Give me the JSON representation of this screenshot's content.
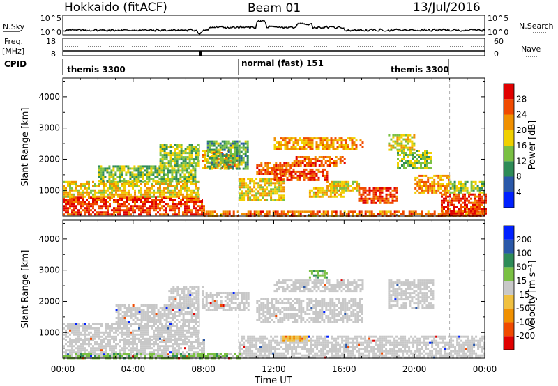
{
  "header": {
    "site": "Hokkaido (fitACF)",
    "beam": "Beam 01",
    "date": "13/Jul/2016"
  },
  "noise_panel": {
    "left_label": "N.Sky",
    "right_label": "N.Search",
    "left_ticks": [
      "10^5",
      "10^0"
    ],
    "right_ticks": [
      "10^5",
      "10^0"
    ]
  },
  "freq_panel": {
    "left_label_1": "Freq.",
    "left_label_2": "[MHz]",
    "right_label": "Nave",
    "left_ticks": [
      "18",
      "8"
    ],
    "right_ticks": [
      "60",
      "0"
    ]
  },
  "cpid_panel": {
    "label": "CPID",
    "segments": [
      {
        "text": "themis 3300",
        "start_hour": 0,
        "end_hour": 10
      },
      {
        "text": "normal (fast) 151",
        "start_hour": 10,
        "end_hour": 22
      },
      {
        "text": "themis 3300",
        "start_hour": 22,
        "end_hour": 24
      }
    ]
  },
  "chart_data": [
    {
      "type": "heatmap",
      "panel": "power",
      "ylabel": "Slant Range [km]",
      "ylim": [
        180,
        4600
      ],
      "yticks": [
        1000,
        2000,
        3000,
        4000
      ],
      "colorbar_label": "Power [dB]",
      "colorbar_ticks": [
        "28",
        "24",
        "20",
        "16",
        "12",
        "8",
        "4"
      ],
      "colors": [
        "#0020ff",
        "#2a58a8",
        "#2e8b57",
        "#7ac043",
        "#f0d000",
        "#f09000",
        "#f04a00",
        "#e00000"
      ],
      "bounds": [
        0,
        4,
        8,
        12,
        16,
        20,
        24,
        28,
        32
      ],
      "regions": [
        {
          "x": [
            0,
            8
          ],
          "y": [
            200,
            800
          ],
          "value": 27
        },
        {
          "x": [
            0,
            7.8
          ],
          "y": [
            800,
            1300
          ],
          "value": 19
        },
        {
          "x": [
            2,
            7.5
          ],
          "y": [
            1300,
            1800
          ],
          "value": 14
        },
        {
          "x": [
            5.5,
            7.8
          ],
          "y": [
            1800,
            2500
          ],
          "value": 15
        },
        {
          "x": [
            7.8,
            10
          ],
          "y": [
            1700,
            2300
          ],
          "value": 22
        },
        {
          "x": [
            8.2,
            10.5
          ],
          "y": [
            1700,
            2600
          ],
          "value": 12
        },
        {
          "x": [
            8,
            24
          ],
          "y": [
            200,
            350
          ],
          "value": 24
        },
        {
          "x": [
            10,
            12.5
          ],
          "y": [
            700,
            1400
          ],
          "value": 18
        },
        {
          "x": [
            11,
            13
          ],
          "y": [
            1500,
            1900
          ],
          "value": 25
        },
        {
          "x": [
            12,
            15
          ],
          "y": [
            1300,
            1700
          ],
          "value": 27
        },
        {
          "x": [
            13,
            16
          ],
          "y": [
            1800,
            2100
          ],
          "value": 25
        },
        {
          "x": [
            12,
            17
          ],
          "y": [
            2300,
            2700
          ],
          "value": 21
        },
        {
          "x": [
            14,
            16
          ],
          "y": [
            800,
            1100
          ],
          "value": 20
        },
        {
          "x": [
            15,
            17
          ],
          "y": [
            1000,
            1300
          ],
          "value": 18
        },
        {
          "x": [
            16.8,
            19
          ],
          "y": [
            600,
            1100
          ],
          "value": 27
        },
        {
          "x": [
            18.5,
            20
          ],
          "y": [
            2300,
            2800
          ],
          "value": 18
        },
        {
          "x": [
            19,
            21
          ],
          "y": [
            1700,
            2300
          ],
          "value": 15
        },
        {
          "x": [
            20,
            22
          ],
          "y": [
            900,
            1500
          ],
          "value": 22
        },
        {
          "x": [
            21.5,
            24
          ],
          "y": [
            200,
            900
          ],
          "value": 27
        },
        {
          "x": [
            22,
            24
          ],
          "y": [
            900,
            1300
          ],
          "value": 14
        }
      ]
    },
    {
      "type": "heatmap",
      "panel": "velocity",
      "ylabel": "Slant Range [km]",
      "ylim": [
        180,
        4600
      ],
      "yticks": [
        1000,
        2000,
        3000,
        4000
      ],
      "xlabel": "Time UT",
      "xlim": [
        0,
        24
      ],
      "xticks": [
        "00:00",
        "04:00",
        "08:00",
        "12:00",
        "16:00",
        "20:00",
        "00:00"
      ],
      "colorbar_label": "Velocity [m s⁻¹]",
      "colorbar_ticks": [
        "200",
        "100",
        "50",
        "15",
        "-15",
        "-50",
        "-100",
        "-200"
      ],
      "colors": [
        "#e00000",
        "#f04a00",
        "#f09000",
        "#f0c040",
        "#c8c8c8",
        "#7ac043",
        "#2e8b57",
        "#2a58a8",
        "#0020ff"
      ],
      "bounds": [
        -300,
        -200,
        -100,
        -50,
        -15,
        15,
        50,
        100,
        200,
        300
      ],
      "regions": [
        {
          "x": [
            0,
            8
          ],
          "y": [
            200,
            800
          ],
          "value": 0
        },
        {
          "x": [
            0,
            7.8
          ],
          "y": [
            800,
            1300
          ],
          "value": 0
        },
        {
          "x": [
            3,
            7.8
          ],
          "y": [
            1300,
            1900
          ],
          "value": 0
        },
        {
          "x": [
            6,
            8
          ],
          "y": [
            1800,
            2500
          ],
          "value": 0
        },
        {
          "x": [
            8,
            10.5
          ],
          "y": [
            1700,
            2300
          ],
          "value": 0
        },
        {
          "x": [
            10,
            24
          ],
          "y": [
            200,
            900
          ],
          "value": 0
        },
        {
          "x": [
            11,
            17
          ],
          "y": [
            1300,
            2100
          ],
          "value": 0
        },
        {
          "x": [
            12,
            17
          ],
          "y": [
            2300,
            2700
          ],
          "value": 0
        },
        {
          "x": [
            18.5,
            21
          ],
          "y": [
            1800,
            2700
          ],
          "value": 0
        },
        {
          "x": [
            0,
            10
          ],
          "y": [
            200,
            350
          ],
          "value": 30
        },
        {
          "x": [
            14,
            15
          ],
          "y": [
            2750,
            3000
          ],
          "value": 35
        },
        {
          "x": [
            12.5,
            14
          ],
          "y": [
            700,
            900
          ],
          "value": -40
        }
      ]
    }
  ]
}
